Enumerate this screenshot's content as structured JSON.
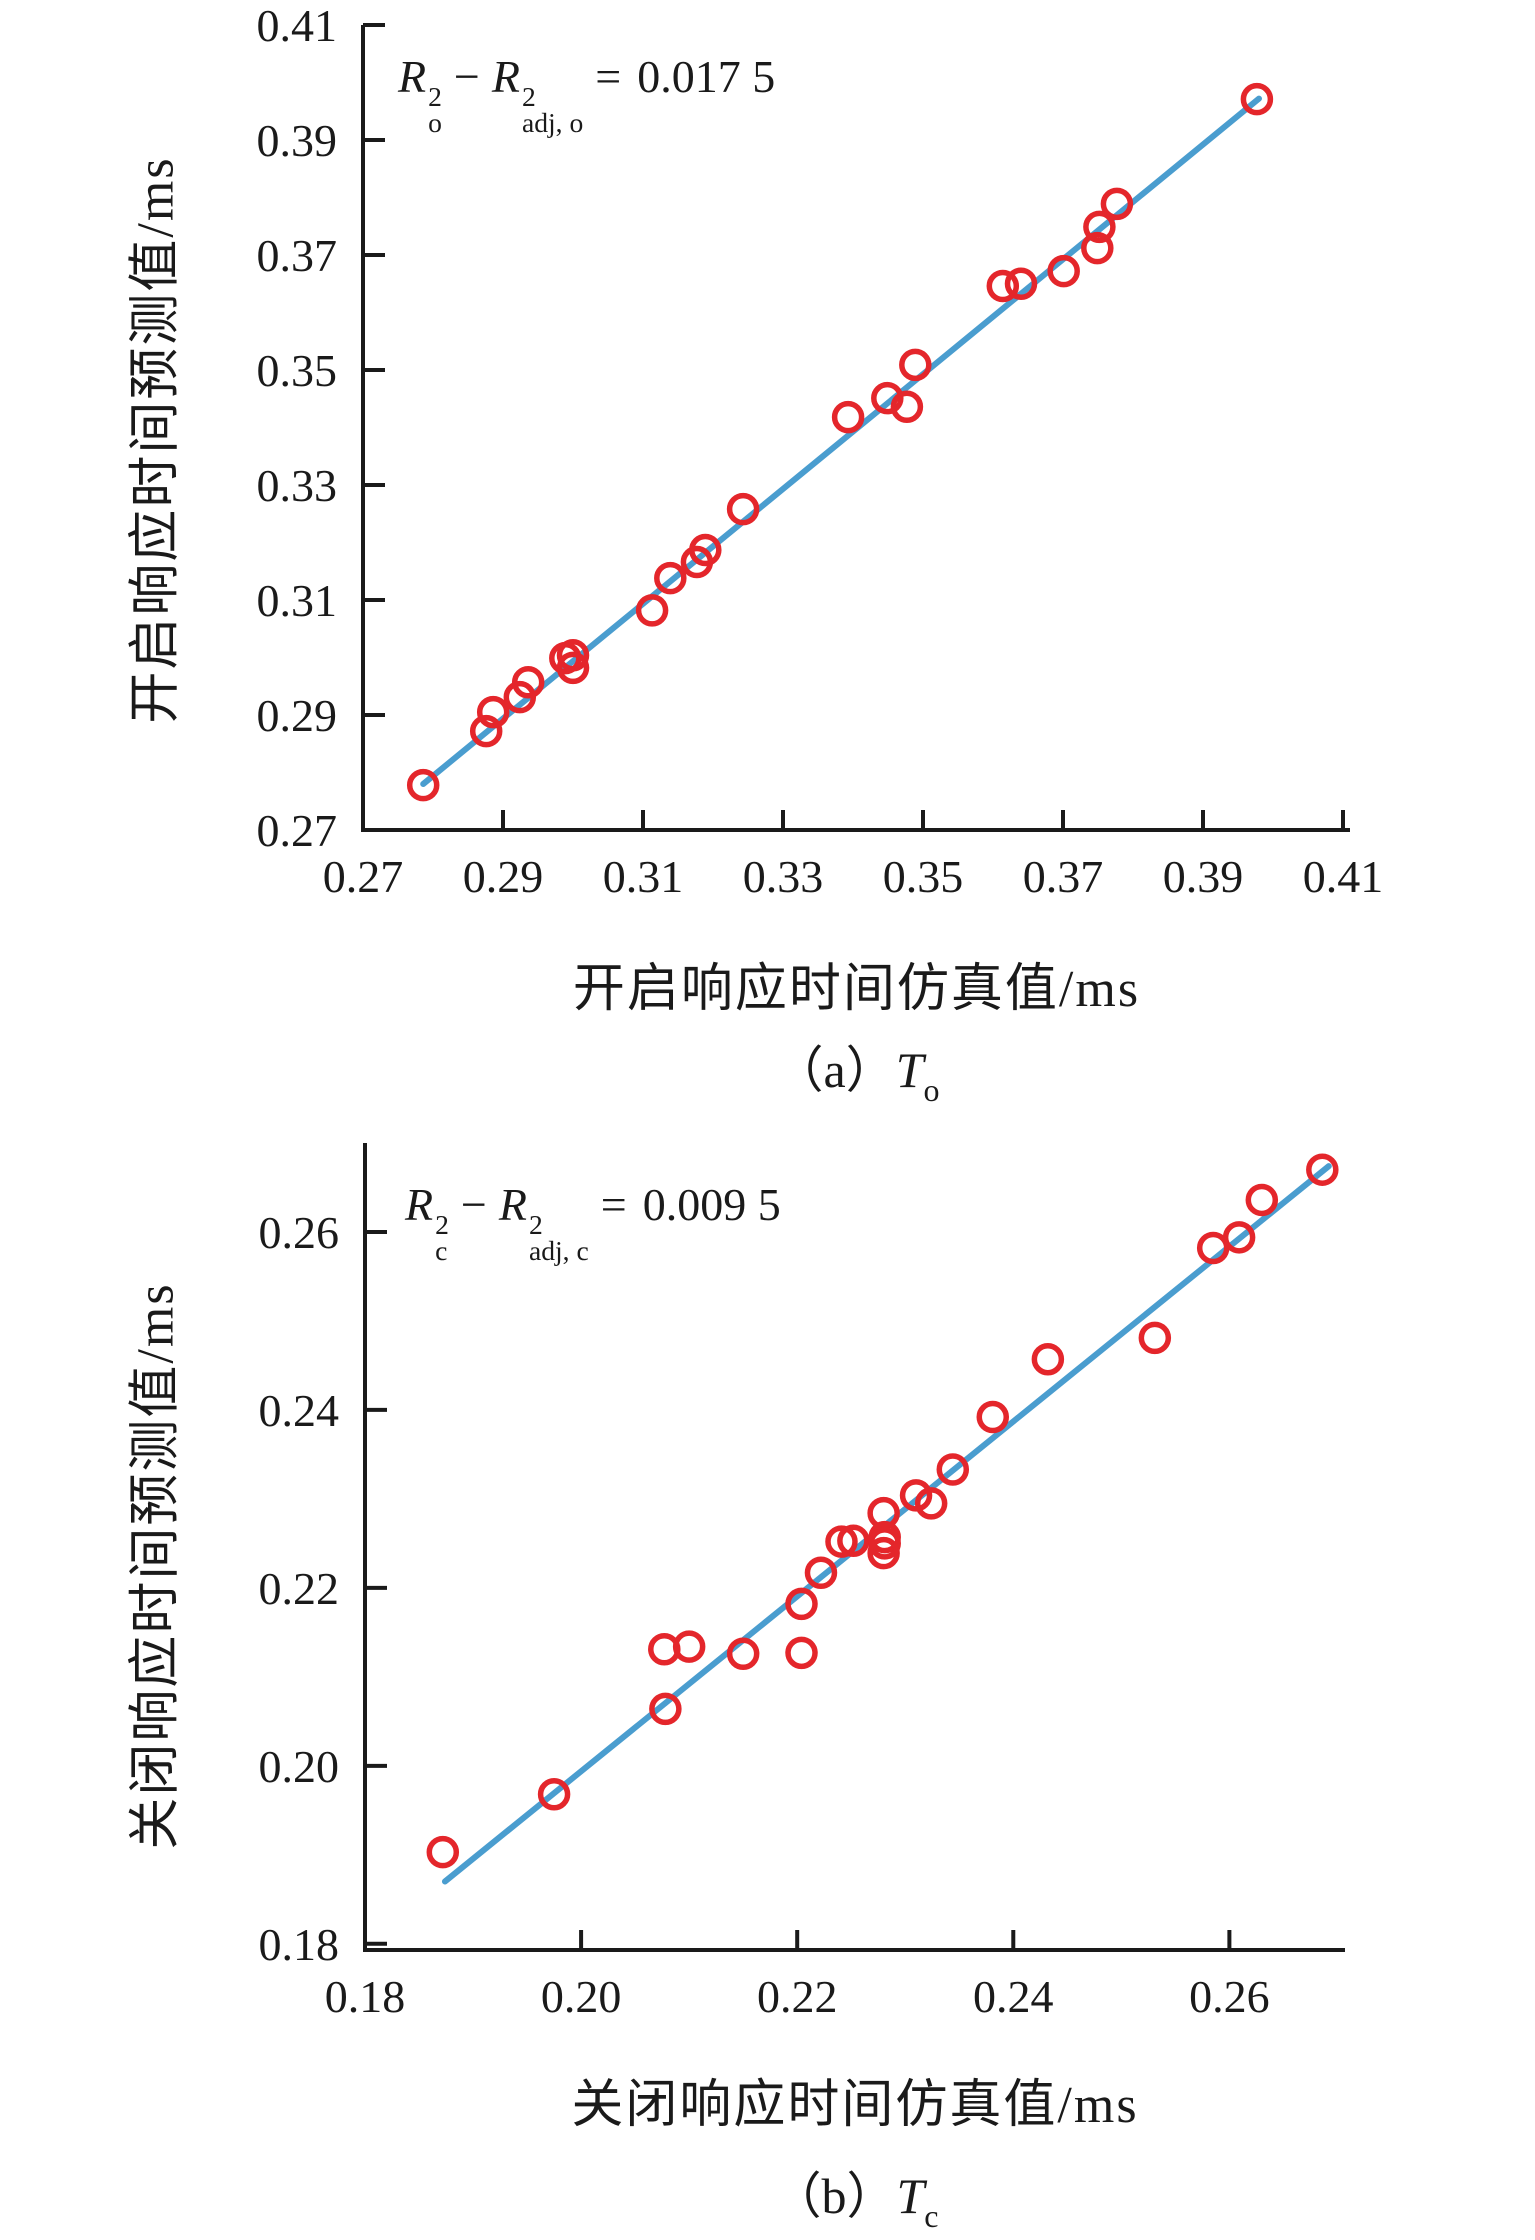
{
  "page": {
    "background": "#ffffff",
    "text_color": "#1a1a1a"
  },
  "annotations": {
    "a": {
      "r1": "R",
      "sup1": "2",
      "sub1": "o",
      "minus": "−",
      "r2": "R",
      "sup2": "2",
      "sub2": "adj, o",
      "equals": "=",
      "value": "0.017 5"
    },
    "b": {
      "r1": "R",
      "sup1": "2",
      "sub1": "c",
      "minus": "−",
      "r2": "R",
      "sup2": "2",
      "sub2": "adj, c",
      "equals": "=",
      "value": "0.009 5"
    }
  },
  "captions": {
    "a": {
      "paren": "（a）",
      "symbol": "T",
      "subscript": "o"
    },
    "b": {
      "paren": "（b）",
      "symbol": "T",
      "subscript": "c"
    }
  },
  "chart_data": [
    {
      "id": "a",
      "type": "scatter",
      "title": "",
      "xlabel": "开启响应时间仿真值/ms",
      "ylabel": "开启响应时间预测值/ms",
      "annotation_text": "R²o − R²adj,o = 0.017 5",
      "caption_text": "（a）To",
      "xlim": [
        0.27,
        0.411
      ],
      "ylim": [
        0.27,
        0.41
      ],
      "grid": false,
      "legend": "none",
      "x_ticks": [
        0.27,
        0.29,
        0.31,
        0.33,
        0.35,
        0.37,
        0.39,
        0.41
      ],
      "x_tick_labels": [
        "0.27",
        "0.29",
        "0.31",
        "0.33",
        "0.35",
        "0.37",
        "0.39",
        "0.41"
      ],
      "y_ticks": [
        0.27,
        0.29,
        0.31,
        0.33,
        0.35,
        0.37,
        0.39,
        0.41
      ],
      "y_tick_labels": [
        "0.27",
        "0.29",
        "0.31",
        "0.33",
        "0.35",
        "0.37",
        "0.39",
        "0.41"
      ],
      "marker_color": "#e4262b",
      "line_color": "#4a9dcf",
      "fit_line": [
        [
          0.2786,
          0.278
        ],
        [
          0.398,
          0.3972
        ]
      ],
      "points": [
        [
          0.2786,
          0.2778
        ],
        [
          0.2876,
          0.2872
        ],
        [
          0.2886,
          0.2905
        ],
        [
          0.2924,
          0.2931
        ],
        [
          0.2936,
          0.2957
        ],
        [
          0.2989,
          0.2999
        ],
        [
          0.3,
          0.3004
        ],
        [
          0.3,
          0.2982
        ],
        [
          0.3113,
          0.3082
        ],
        [
          0.3139,
          0.3138
        ],
        [
          0.3177,
          0.3166
        ],
        [
          0.3189,
          0.3187
        ],
        [
          0.3243,
          0.3258
        ],
        [
          0.3393,
          0.3418
        ],
        [
          0.3449,
          0.3451
        ],
        [
          0.3477,
          0.3436
        ],
        [
          0.3489,
          0.3509
        ],
        [
          0.3614,
          0.3646
        ],
        [
          0.364,
          0.365
        ],
        [
          0.3701,
          0.3672
        ],
        [
          0.3749,
          0.3712
        ],
        [
          0.3752,
          0.3749
        ],
        [
          0.3777,
          0.3789
        ],
        [
          0.3977,
          0.3971
        ]
      ]
    },
    {
      "id": "b",
      "type": "scatter",
      "title": "",
      "xlabel": "关闭响应时间仿真值/ms",
      "ylabel": "关闭响应时间预测值/ms",
      "annotation_text": "R²c − R²adj,c = 0.009 5",
      "caption_text": "（b）Tc",
      "xlim": [
        0.18,
        0.2707
      ],
      "ylim": [
        0.1793,
        0.27
      ],
      "grid": false,
      "legend": "none",
      "x_ticks": [
        0.18,
        0.2,
        0.22,
        0.24,
        0.26
      ],
      "x_tick_labels": [
        "0.18",
        "0.20",
        "0.22",
        "0.24",
        "0.26"
      ],
      "y_ticks": [
        0.18,
        0.2,
        0.22,
        0.24,
        0.26
      ],
      "y_tick_labels": [
        "0.18",
        "0.20",
        "0.22",
        "0.24",
        "0.26"
      ],
      "marker_color": "#e4262b",
      "line_color": "#4a9dcf",
      "fit_line": [
        [
          0.1874,
          0.187
        ],
        [
          0.2692,
          0.2674
        ]
      ],
      "points": [
        [
          0.1872,
          0.1903
        ],
        [
          0.1975,
          0.1968
        ],
        [
          0.2078,
          0.2064
        ],
        [
          0.2077,
          0.2131
        ],
        [
          0.21,
          0.2134
        ],
        [
          0.215,
          0.2126
        ],
        [
          0.2204,
          0.2127
        ],
        [
          0.2204,
          0.2182
        ],
        [
          0.2222,
          0.2217
        ],
        [
          0.2241,
          0.2252
        ],
        [
          0.2252,
          0.2253
        ],
        [
          0.228,
          0.2284
        ],
        [
          0.2281,
          0.2257
        ],
        [
          0.2281,
          0.225
        ],
        [
          0.228,
          0.2239
        ],
        [
          0.231,
          0.2304
        ],
        [
          0.2324,
          0.2295
        ],
        [
          0.2344,
          0.2333
        ],
        [
          0.2381,
          0.2392
        ],
        [
          0.2432,
          0.2457
        ],
        [
          0.2531,
          0.2481
        ],
        [
          0.2585,
          0.2582
        ],
        [
          0.2609,
          0.2594
        ],
        [
          0.263,
          0.2636
        ],
        [
          0.2686,
          0.267
        ]
      ]
    }
  ]
}
